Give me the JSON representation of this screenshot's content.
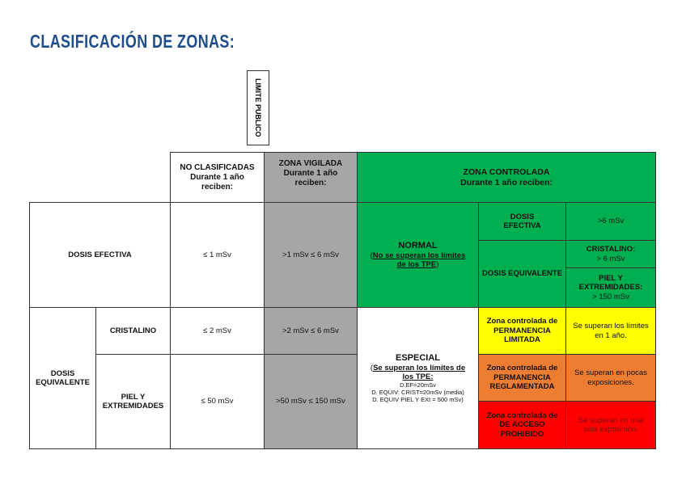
{
  "title": "CLASIFICACIÓN DE ZONAS:",
  "limite_publico": "LIMITE PUBLICO",
  "headers": {
    "no_clasificadas": {
      "l1": "NO CLASIFICADAS",
      "l2": "Durante 1 año reciben:"
    },
    "vigilada": {
      "l1": "ZONA VIGILADA",
      "l2": "Durante 1 año reciben:"
    },
    "controlada": {
      "l1": "ZONA CONTROLADA",
      "l2": "Durante 1 año reciben:"
    }
  },
  "rows": {
    "dosis_efectiva": {
      "label": "DOSIS EFECTIVA",
      "no_clasificadas": "≤ 1 mSv",
      "vigilada": ">1 mSv ≤ 6 mSv"
    },
    "dosis_equivalente": {
      "label": "DOSIS EQUIVALENTE",
      "cristalino": {
        "label": "CRISTALINO",
        "no_clasificadas": "≤ 2 mSv",
        "vigilada": ">2 mSv ≤ 6 mSv"
      },
      "piel": {
        "label": "PIEL Y EXTREMIDADES",
        "no_clasificadas": "≤ 50 mSv",
        "vigilada": ">50 mSv ≤ 150 mSv"
      }
    }
  },
  "normal": {
    "title": "NORMAL",
    "open": "(",
    "sub": "No se superan los límites de los TPE",
    "close": ")",
    "dosis_efectiva": "DOSIS EFECTIVA",
    "efectiva_val": ">6 mSv",
    "dosis_equivalente": "DOSIS EQUIVALENTE",
    "cristalino": "CRISTALINO:",
    "cristalino_val": "> 6 mSv",
    "piel": "PIEL Y EXTREMIDADES:",
    "piel_val": "> 150 mSv"
  },
  "especial": {
    "title": "ESPECIAL",
    "open": "(",
    "sub": "Se superan los límites de los TPE:",
    "l1": "D.EF=20mSv",
    "l2": "D. EQUIV: CRIST=20mSv (media)",
    "l3": "D. EQUIV PIEL Y EXt = 500 mSv)"
  },
  "zonas": [
    {
      "name": "Zona controlada de PERMANENCIA LIMITADA",
      "desc": "Se superan los límites en 1 año.",
      "color": "#ffff00"
    },
    {
      "name": "Zona controlada de PERMANENCIA REGLAMENTADA",
      "desc": "Se superan en pocas exposiciones.",
      "color": "#ed7d31"
    },
    {
      "name": "Zona controlada de DE ACCESO PROHIBIDO",
      "desc": "Se superan en una sola exposición.",
      "color": "#ff0000"
    }
  ]
}
